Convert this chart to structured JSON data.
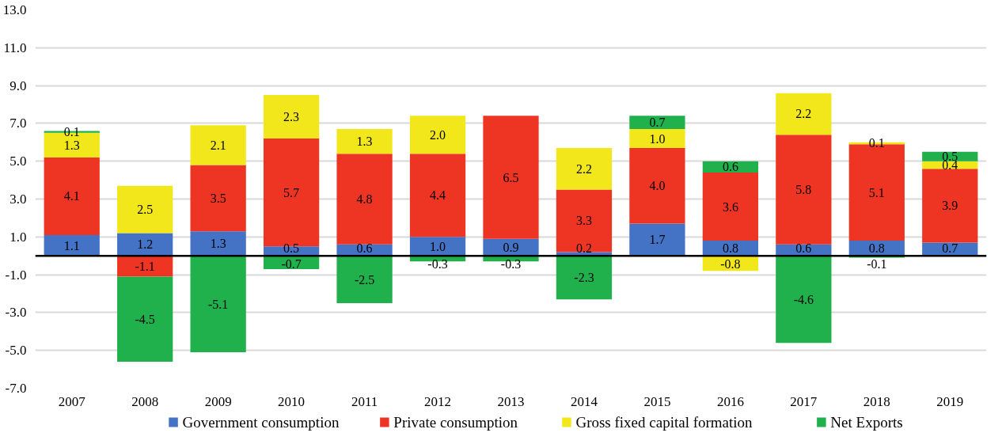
{
  "chart_data": {
    "type": "bar",
    "stacked": true,
    "data_labels": true,
    "grid": "y",
    "legend": "bottom",
    "categories": [
      "2007",
      "2008",
      "2009",
      "2010",
      "2011",
      "2012",
      "2013",
      "2014",
      "2015",
      "2016",
      "2017",
      "2018",
      "2019"
    ],
    "ylim": [
      -7,
      13
    ],
    "yticks": [
      {
        "value": -7,
        "label": "-7.0"
      },
      {
        "value": -5,
        "label": "-5.0"
      },
      {
        "value": -3,
        "label": "-3.0"
      },
      {
        "value": -1,
        "label": "-1.0"
      },
      {
        "value": 1,
        "label": "1.0"
      },
      {
        "value": 3,
        "label": "3.0"
      },
      {
        "value": 5,
        "label": "5.0"
      },
      {
        "value": 7,
        "label": "7.0"
      },
      {
        "value": 9,
        "label": "9.0"
      },
      {
        "value": 11,
        "label": "11.0"
      },
      {
        "value": 13,
        "label": "13.0"
      }
    ],
    "ref_lines": [
      {
        "axis": "y",
        "value": 0,
        "color": "#000000"
      }
    ],
    "series": [
      {
        "name": "Government  consumption",
        "color": "#4472c4",
        "values": [
          1.1,
          1.2,
          1.3,
          0.5,
          0.6,
          1.0,
          0.9,
          0.2,
          1.7,
          0.8,
          0.6,
          0.8,
          0.7
        ],
        "value_labels": [
          "1.1",
          "1.2",
          "1.3",
          "0.5",
          "0.6",
          "1.0",
          "0.9",
          "0.2",
          "1.7",
          "0.8",
          "0.6",
          "0.8",
          "0.7"
        ]
      },
      {
        "name": "Private consumption",
        "color": "#ee3524",
        "values": [
          4.1,
          -1.1,
          3.5,
          5.7,
          4.8,
          4.4,
          6.5,
          3.3,
          4.0,
          3.6,
          5.8,
          5.1,
          3.9
        ],
        "value_labels": [
          "4.1",
          "-1.1",
          "3.5",
          "5.7",
          "4.8",
          "4.4",
          "6.5",
          "3.3",
          "4.0",
          "3.6",
          "5.8",
          "5.1",
          "3.9"
        ]
      },
      {
        "name": "Gross fixed capital formation",
        "color": "#f2e71a",
        "values": [
          1.3,
          2.5,
          2.1,
          2.3,
          1.3,
          2.0,
          null,
          2.2,
          1.0,
          -0.8,
          2.2,
          0.1,
          0.4
        ],
        "value_labels": [
          "1.3",
          "2.5",
          "2.1",
          "2.3",
          "1.3",
          "2.0",
          null,
          "2.2",
          "1.0",
          "-0.8",
          "2.2",
          "0.1",
          "0.4"
        ]
      },
      {
        "name": "Net Exports",
        "color": "#21b14c",
        "values": [
          0.1,
          -4.5,
          -5.1,
          -0.7,
          -2.5,
          -0.3,
          -0.3,
          -2.3,
          0.7,
          0.6,
          -4.6,
          -0.1,
          0.5
        ],
        "value_labels": [
          "0.1",
          "-4.5",
          "-5.1",
          "-0.7",
          "-2.5",
          "-0.3",
          "-0.3",
          "-2.3",
          "0.7",
          "0.6",
          "-4.6",
          "-0.1",
          "0.5"
        ]
      }
    ]
  }
}
